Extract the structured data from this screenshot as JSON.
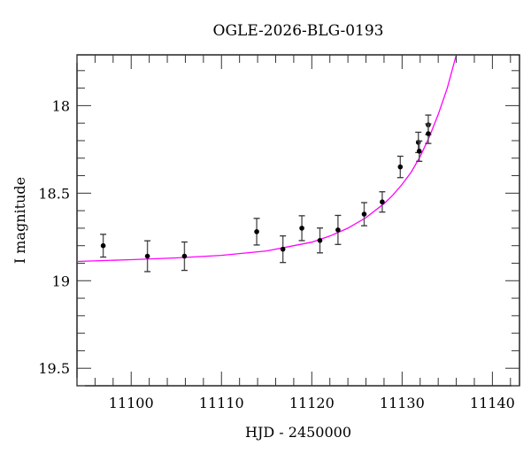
{
  "chart_data": {
    "type": "scatter",
    "title": "OGLE-2026-BLG-0193",
    "xlabel": "HJD - 2450000",
    "ylabel": "I magnitude",
    "xlim": [
      11094.0,
      11143.0
    ],
    "ylim": [
      19.6,
      17.71
    ],
    "y_inverted": true,
    "x_ticks": [
      11100,
      11110,
      11120,
      11130,
      11140
    ],
    "x_tick_labels": [
      "11100",
      "11110",
      "11120",
      "11130",
      "11140"
    ],
    "y_ticks": [
      18,
      18.5,
      19,
      19.5
    ],
    "y_tick_labels": [
      "18",
      "18.5",
      "19",
      "19.5"
    ],
    "grid": false,
    "legend": null,
    "series": [
      {
        "name": "data",
        "kind": "errorbar",
        "color": "#000000",
        "points": [
          {
            "x": 11096.9,
            "y": 18.8,
            "err": 0.065
          },
          {
            "x": 11101.8,
            "y": 18.86,
            "err": 0.088
          },
          {
            "x": 11105.9,
            "y": 18.86,
            "err": 0.081
          },
          {
            "x": 11113.9,
            "y": 18.72,
            "err": 0.076
          },
          {
            "x": 11116.8,
            "y": 18.82,
            "err": 0.076
          },
          {
            "x": 11118.9,
            "y": 18.7,
            "err": 0.071
          },
          {
            "x": 11120.9,
            "y": 18.77,
            "err": 0.071
          },
          {
            "x": 11122.9,
            "y": 18.71,
            "err": 0.083
          },
          {
            "x": 11125.8,
            "y": 18.62,
            "err": 0.066
          },
          {
            "x": 11127.8,
            "y": 18.55,
            "err": 0.058
          },
          {
            "x": 11129.8,
            "y": 18.35,
            "err": 0.061
          },
          {
            "x": 11131.8,
            "y": 18.21,
            "err": 0.058
          },
          {
            "x": 11131.9,
            "y": 18.26,
            "err": 0.058
          },
          {
            "x": 11132.9,
            "y": 18.11,
            "err": 0.056
          },
          {
            "x": 11132.9,
            "y": 18.16,
            "err": 0.056
          }
        ]
      },
      {
        "name": "model",
        "kind": "line",
        "color": "#ff00ff",
        "points": [
          {
            "x": 11094.0,
            "y": 18.89
          },
          {
            "x": 11100.0,
            "y": 18.88
          },
          {
            "x": 11105.0,
            "y": 18.87
          },
          {
            "x": 11110.0,
            "y": 18.855
          },
          {
            "x": 11115.0,
            "y": 18.83
          },
          {
            "x": 11118.0,
            "y": 18.8
          },
          {
            "x": 11120.0,
            "y": 18.78
          },
          {
            "x": 11122.0,
            "y": 18.745
          },
          {
            "x": 11124.0,
            "y": 18.7
          },
          {
            "x": 11126.0,
            "y": 18.64
          },
          {
            "x": 11128.0,
            "y": 18.56
          },
          {
            "x": 11129.0,
            "y": 18.51
          },
          {
            "x": 11130.0,
            "y": 18.45
          },
          {
            "x": 11131.0,
            "y": 18.38
          },
          {
            "x": 11132.0,
            "y": 18.29
          },
          {
            "x": 11133.0,
            "y": 18.18
          },
          {
            "x": 11134.0,
            "y": 18.05
          },
          {
            "x": 11135.0,
            "y": 17.9
          },
          {
            "x": 11136.0,
            "y": 17.71
          }
        ]
      }
    ]
  }
}
